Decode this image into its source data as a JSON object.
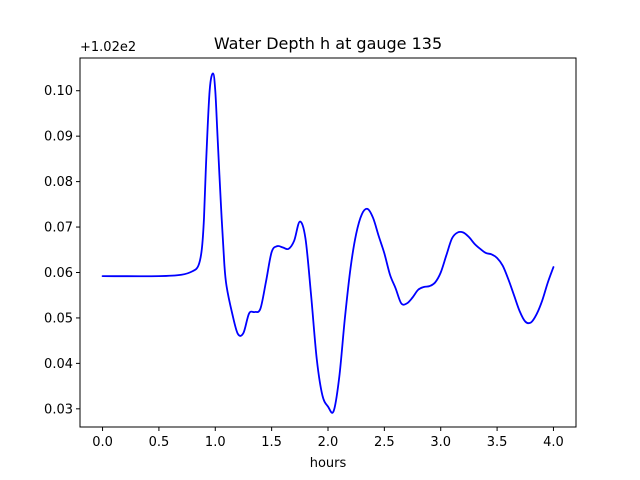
{
  "chart_data": {
    "type": "line",
    "title": "Water Depth h at gauge 135",
    "xlabel": "hours",
    "ylabel": "",
    "y_offset_label": "+1.02e2",
    "y_offset": 102,
    "xlim": [
      -0.2,
      4.2
    ],
    "ylim": [
      0.026,
      0.1072
    ],
    "xticks": [
      0.0,
      0.5,
      1.0,
      1.5,
      2.0,
      2.5,
      3.0,
      3.5,
      4.0
    ],
    "xtick_labels": [
      "0.0",
      "0.5",
      "1.0",
      "1.5",
      "2.0",
      "2.5",
      "3.0",
      "3.5",
      "4.0"
    ],
    "yticks": [
      0.03,
      0.04,
      0.05,
      0.06,
      0.07,
      0.08,
      0.09,
      0.1
    ],
    "ytick_labels": [
      "0.03",
      "0.04",
      "0.05",
      "0.06",
      "0.07",
      "0.08",
      "0.09",
      "0.10"
    ],
    "grid": false,
    "series": [
      {
        "color": "#0000ff",
        "x": [
          0.0,
          0.5,
          0.7,
          0.8,
          0.85,
          0.88,
          0.9,
          0.92,
          0.95,
          0.98,
          1.0,
          1.02,
          1.05,
          1.08,
          1.1,
          1.15,
          1.2,
          1.25,
          1.3,
          1.35,
          1.4,
          1.45,
          1.5,
          1.55,
          1.6,
          1.65,
          1.7,
          1.75,
          1.8,
          1.85,
          1.9,
          1.95,
          2.0,
          2.05,
          2.1,
          2.15,
          2.2,
          2.25,
          2.3,
          2.35,
          2.4,
          2.45,
          2.5,
          2.55,
          2.6,
          2.65,
          2.7,
          2.75,
          2.8,
          2.85,
          2.9,
          2.95,
          3.0,
          3.05,
          3.1,
          3.15,
          3.2,
          3.25,
          3.3,
          3.35,
          3.4,
          3.45,
          3.5,
          3.55,
          3.6,
          3.65,
          3.7,
          3.75,
          3.8,
          3.85,
          3.9,
          3.95,
          4.0
        ],
        "y": [
          0.0592,
          0.0592,
          0.0595,
          0.0603,
          0.0615,
          0.065,
          0.072,
          0.085,
          0.1,
          0.1038,
          0.1,
          0.09,
          0.075,
          0.062,
          0.057,
          0.051,
          0.0465,
          0.0467,
          0.051,
          0.0513,
          0.052,
          0.058,
          0.0645,
          0.0658,
          0.0655,
          0.0652,
          0.067,
          0.0712,
          0.0675,
          0.055,
          0.041,
          0.033,
          0.0305,
          0.0295,
          0.037,
          0.05,
          0.061,
          0.0685,
          0.0728,
          0.074,
          0.072,
          0.068,
          0.0642,
          0.0595,
          0.0565,
          0.0532,
          0.0532,
          0.0545,
          0.0562,
          0.0568,
          0.057,
          0.0578,
          0.06,
          0.0638,
          0.0675,
          0.0688,
          0.0688,
          0.0678,
          0.0663,
          0.0652,
          0.0643,
          0.064,
          0.0632,
          0.0615,
          0.0585,
          0.055,
          0.0515,
          0.0492,
          0.049,
          0.0508,
          0.0538,
          0.0578,
          0.0612
        ]
      }
    ]
  }
}
